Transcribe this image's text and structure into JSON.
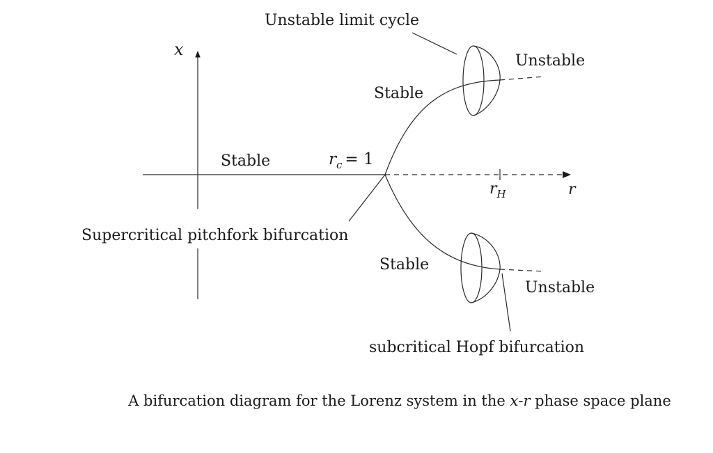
{
  "labels": {
    "x_axis": "x",
    "r_axis": "r",
    "stable_left": "Stable",
    "rc_symbol": "r",
    "rc_subscript": "c",
    "rc_value": "= 1",
    "stable_upper": "Stable",
    "stable_lower": "Stable",
    "unstable_upper": "Unstable",
    "unstable_lower": "Unstable",
    "unstable_limit_cycle": "Unstable limit cycle",
    "supercritical": "Supercritical pitchfork bifurcation",
    "subcritical": "subcritical Hopf bifurcation",
    "rh_symbol": "r",
    "rh_subscript": "H"
  },
  "caption": {
    "before": "A bifurcation diagram for the Lorenz system in the ",
    "var1": "x",
    "hyphen": "-",
    "var2": "r",
    "after": " phase space plane"
  },
  "colors": {
    "ink": "#2a2a2a",
    "background": "#ffffff"
  }
}
